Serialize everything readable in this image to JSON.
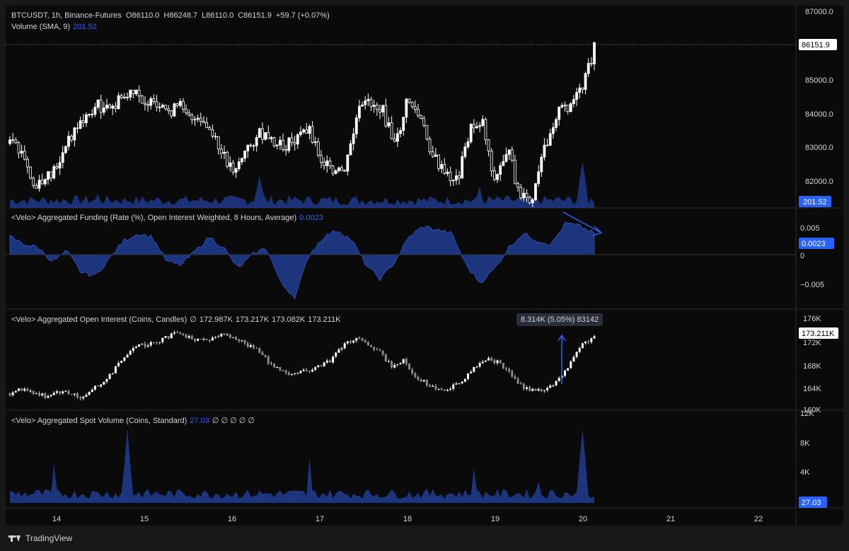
{
  "symbol_line": {
    "symbol": "BTCUSDT, 1h, Binance-Futures",
    "open": "O86110.0",
    "high": "H86248.7",
    "low": "L86110.0",
    "close": "C86151.9",
    "change": "+59.7 (+0.07%)"
  },
  "volume_legend": {
    "label": "Volume (SMA, 9)",
    "value": "201.52"
  },
  "panes": {
    "funding": {
      "label": "<Velo> Aggregated Funding (Rate (%), Open Interest Weighted, 8 Hours, Average)",
      "value": "0.0023"
    },
    "oi": {
      "label": "<Velo> Aggregated Open Interest (Coins, Candles)",
      "null_icon": "∅",
      "values": [
        "172.987K",
        "173.217K",
        "173.082K",
        "173.211K"
      ]
    },
    "spot": {
      "label": "<Velo> Aggregated Spot Volume (Coins, Standard)",
      "value": "27.03",
      "null_icons": "∅ ∅ ∅ ∅ ∅"
    }
  },
  "oi_tooltip": "8.314K (5.05%) 83142",
  "price_axis": [
    "87000.0",
    "86000.0",
    "85000.0",
    "84000.0",
    "83000.0",
    "82000.0"
  ],
  "price_last_label": "86151.9",
  "volume_last_label": "201.52",
  "funding_axis": [
    "0.005",
    "0",
    "−0.005"
  ],
  "funding_last_label": "0.0023",
  "oi_axis": [
    "176K",
    "172K",
    "168K",
    "164K",
    "160K"
  ],
  "oi_last_label": "173.211K",
  "spot_axis": [
    "12K",
    "8K",
    "4K"
  ],
  "spot_last_label": "27.03",
  "time_axis": [
    "14",
    "15",
    "16",
    "17",
    "18",
    "19",
    "20",
    "21",
    "22"
  ],
  "brand": "TradingView",
  "colors": {
    "background": "#0a0a0a",
    "accent": "#2962ff",
    "area_fill": "#1e3a8a",
    "candle": "#ffffff",
    "text": "#d1d4dc",
    "grid": "#262626"
  }
}
